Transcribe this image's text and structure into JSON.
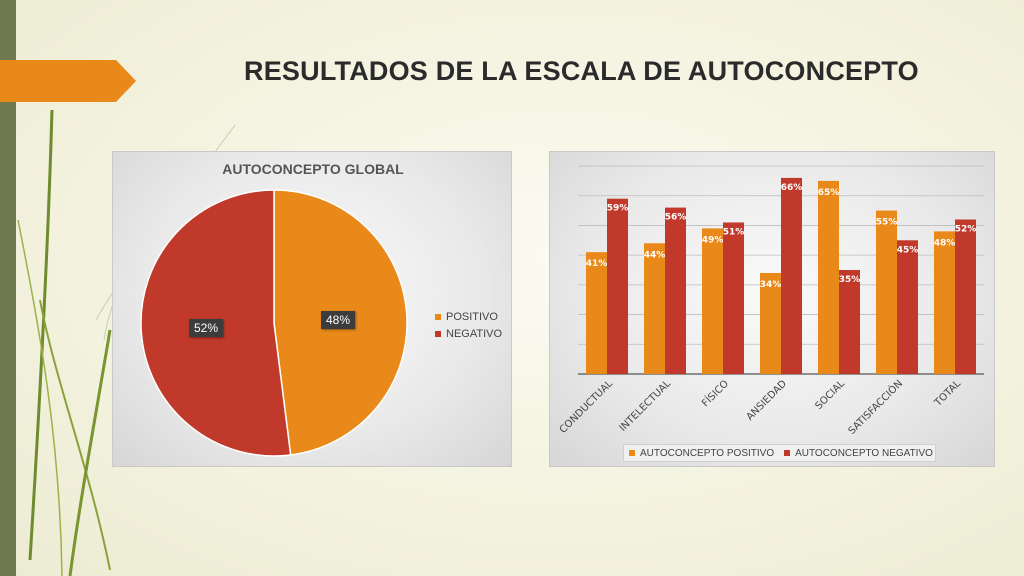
{
  "slide": {
    "title": "RESULTADOS DE LA ESCALA DE AUTOCONCEPTO"
  },
  "colors": {
    "positivo": "#e8891a",
    "negativo": "#c0392b",
    "accent_bar": "#6f7a4f",
    "arrow": "#e8891a"
  },
  "chart_data": [
    {
      "type": "pie",
      "title": "AUTOCONCEPTO GLOBAL",
      "categories": [
        "POSITIVO",
        "NEGATIVO"
      ],
      "values": [
        48,
        52
      ],
      "labels": [
        "48%",
        "52%"
      ],
      "legend": "right"
    },
    {
      "type": "bar",
      "title": "",
      "categories": [
        "CONDUCTUAL",
        "INTELECTUAL",
        "FÍSICO",
        "ANSIEDAD",
        "SOCIAL",
        "SATISFACCIÓN",
        "TOTAL"
      ],
      "series": [
        {
          "name": "AUTOCONCEPTO POSITIVO",
          "values": [
            41,
            44,
            49,
            34,
            65,
            55,
            48
          ],
          "labels": [
            "41%",
            "44%",
            "49%",
            "34%",
            "65%",
            "55%",
            "48%"
          ]
        },
        {
          "name": "AUTOCONCEPTO NEGATIVO",
          "values": [
            59,
            56,
            51,
            66,
            35,
            45,
            52
          ],
          "labels": [
            "59%",
            "56%",
            "51%",
            "66%",
            "35%",
            "45%",
            "52%"
          ]
        }
      ],
      "ylim": [
        0,
        70
      ],
      "grid": true,
      "legend": "bottom"
    }
  ]
}
